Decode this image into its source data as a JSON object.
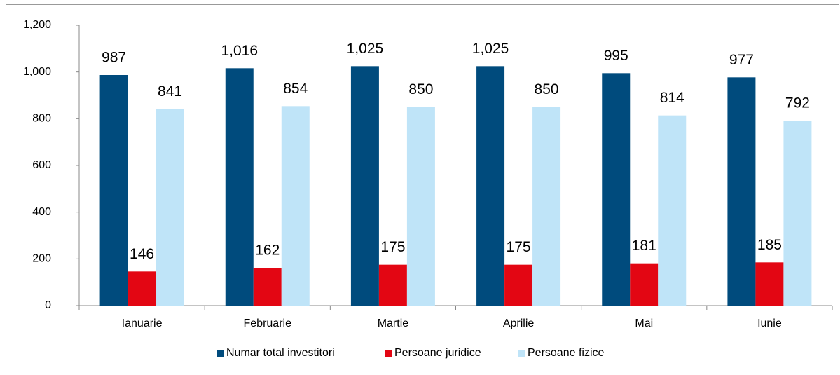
{
  "chart_data": {
    "type": "bar",
    "categories": [
      "Ianuarie",
      "Februarie",
      "Martie",
      "Aprilie",
      "Mai",
      "Iunie"
    ],
    "series": [
      {
        "name": "Numar total investitori",
        "color": "#004b7d",
        "values": [
          987,
          1016,
          1025,
          1025,
          995,
          977
        ],
        "value_labels": [
          "987",
          "1,016",
          "1,025",
          "1,025",
          "995",
          "977"
        ]
      },
      {
        "name": "Persoane juridice",
        "color": "#e30613",
        "values": [
          146,
          162,
          175,
          175,
          181,
          185
        ]
      },
      {
        "name": "Persoane fizice",
        "color": "#bfe4f8",
        "values": [
          841,
          854,
          850,
          850,
          814,
          792
        ]
      }
    ],
    "ylim": [
      0,
      1200
    ],
    "yticks": [
      0,
      200,
      400,
      600,
      800,
      {
        "value": 1000,
        "label": "1,000"
      },
      {
        "value": 1200,
        "label": "1,200"
      }
    ],
    "grid": false,
    "legend": "bottom"
  }
}
